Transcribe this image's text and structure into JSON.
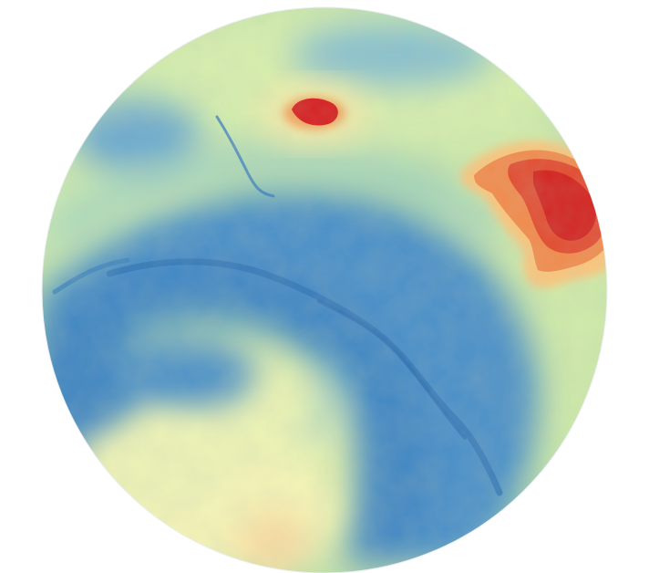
{
  "map": {
    "type": "circular elevation (DEM) relief map",
    "color_scale": [
      "#2c7bb6",
      "#5aa3c8",
      "#abd9e9",
      "#e0f3b3",
      "#ffffbf",
      "#fdae61",
      "#f46d43",
      "#d7191c"
    ],
    "colors": {
      "low": "#3f88c5",
      "mid_low": "#7fbfd0",
      "mid": "#c9e8a8",
      "mid_high": "#f6f4b0",
      "high": "#f4a45a",
      "peak": "#d7191c",
      "background": "#ffffff"
    },
    "features": [
      "river-valley",
      "northern-hill",
      "eastern-highland",
      "southern-plateau"
    ]
  }
}
